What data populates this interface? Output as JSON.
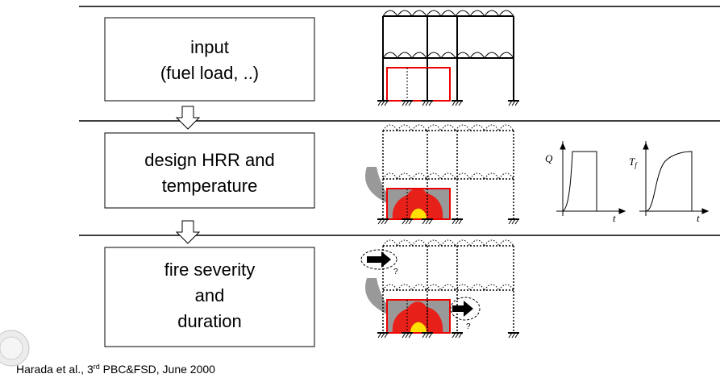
{
  "steps": [
    {
      "lines": [
        "input",
        "(fuel load, ..)"
      ]
    },
    {
      "lines": [
        "design HRR and",
        "temperature"
      ]
    },
    {
      "lines": [
        "fire severity",
        "and",
        "duration"
      ]
    }
  ],
  "graphs": [
    {
      "y_label": "Q",
      "x_label": "t"
    },
    {
      "y_label": "T",
      "y_sub": "f",
      "x_label": "t"
    }
  ],
  "annotations": [
    "?",
    "?"
  ],
  "citation": {
    "before": "Harada et al., 3",
    "sup": "rd",
    "after": " PBC&FSD, June 2000"
  }
}
